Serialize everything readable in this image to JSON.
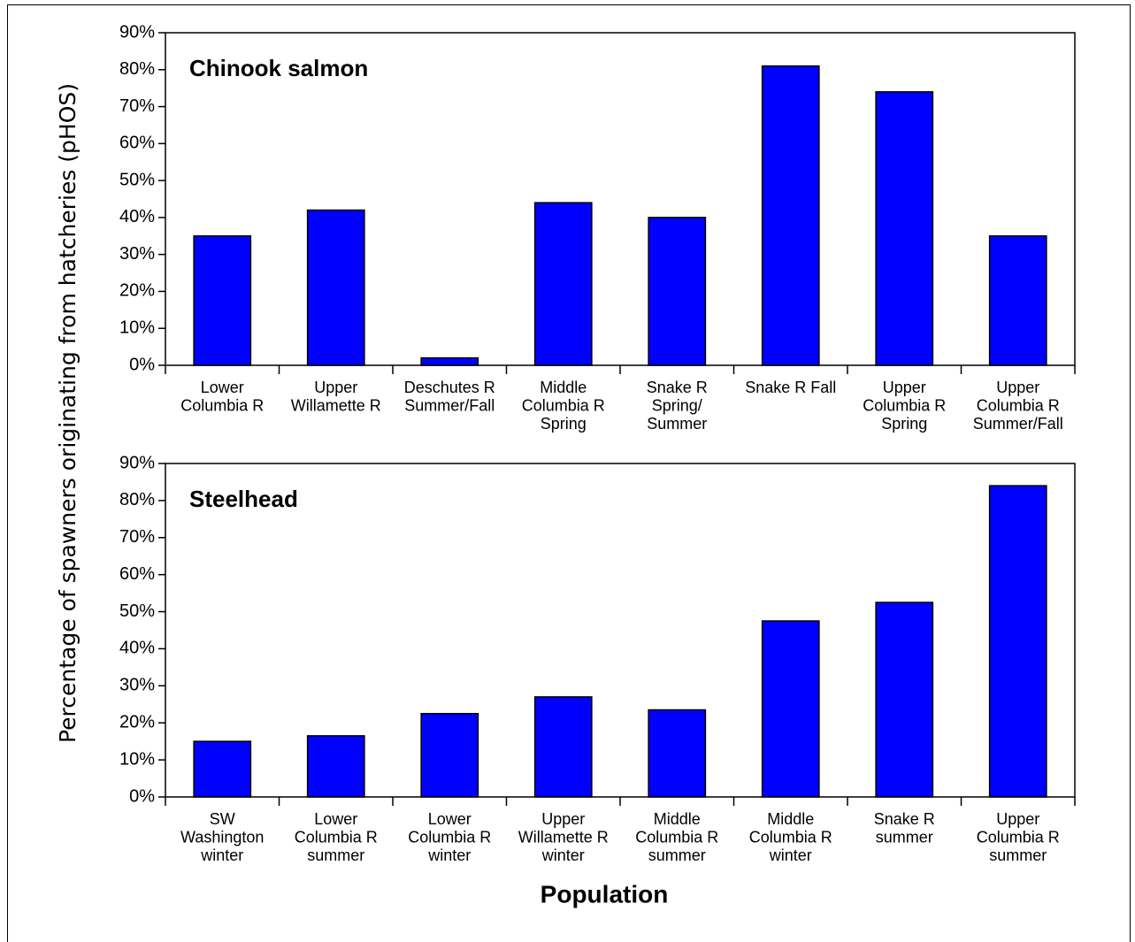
{
  "chart_data": [
    {
      "type": "bar",
      "title": "Chinook salmon",
      "ylabel": "Percentage of spawners originating from hatcheries (pHOS)",
      "categories": [
        "Lower\nColumbia R",
        "Upper\nWillamette R",
        "Deschutes R\nSummer/Fall",
        "Middle\nColumbia R\nSpring",
        "Snake R\nSpring/\nSummer",
        "Snake R Fall",
        "Upper\nColumbia R\nSpring",
        "Upper\nColumbia R\nSummer/Fall"
      ],
      "values": [
        35,
        42,
        2,
        44,
        40,
        81,
        74,
        35
      ],
      "color": "#0000ff",
      "ylim": [
        0,
        90
      ],
      "yticks": [
        {
          "value": 0,
          "label": "0%"
        },
        {
          "value": 10,
          "label": "10%"
        },
        {
          "value": 20,
          "label": "20%"
        },
        {
          "value": 30,
          "label": "30%"
        },
        {
          "value": 40,
          "label": "40%"
        },
        {
          "value": 50,
          "label": "50%"
        },
        {
          "value": 60,
          "label": "60%"
        },
        {
          "value": 70,
          "label": "70%"
        },
        {
          "value": 80,
          "label": "80%"
        },
        {
          "value": 90,
          "label": "90%"
        }
      ],
      "grid": false
    },
    {
      "type": "bar",
      "title": "Steelhead",
      "xlabel": "Population",
      "categories": [
        "SW\nWashington\nwinter",
        "Lower\nColumbia R\nsummer",
        "Lower\nColumbia R\nwinter",
        "Upper\nWillamette R\nwinter",
        "Middle\nColumbia R\nsummer",
        "Middle\nColumbia R\nwinter",
        "Snake R\nsummer",
        "Upper\nColumbia R\nsummer"
      ],
      "values": [
        15,
        16.5,
        22.5,
        27,
        23.5,
        47.5,
        52.5,
        84
      ],
      "color": "#0000ff",
      "ylim": [
        0,
        90
      ],
      "yticks": [
        {
          "value": 0,
          "label": "0%"
        },
        {
          "value": 10,
          "label": "10%"
        },
        {
          "value": 20,
          "label": "20%"
        },
        {
          "value": 30,
          "label": "30%"
        },
        {
          "value": 40,
          "label": "40%"
        },
        {
          "value": 50,
          "label": "50%"
        },
        {
          "value": 60,
          "label": "60%"
        },
        {
          "value": 70,
          "label": "70%"
        },
        {
          "value": 80,
          "label": "80%"
        },
        {
          "value": 90,
          "label": "90%"
        }
      ],
      "grid": false
    }
  ]
}
